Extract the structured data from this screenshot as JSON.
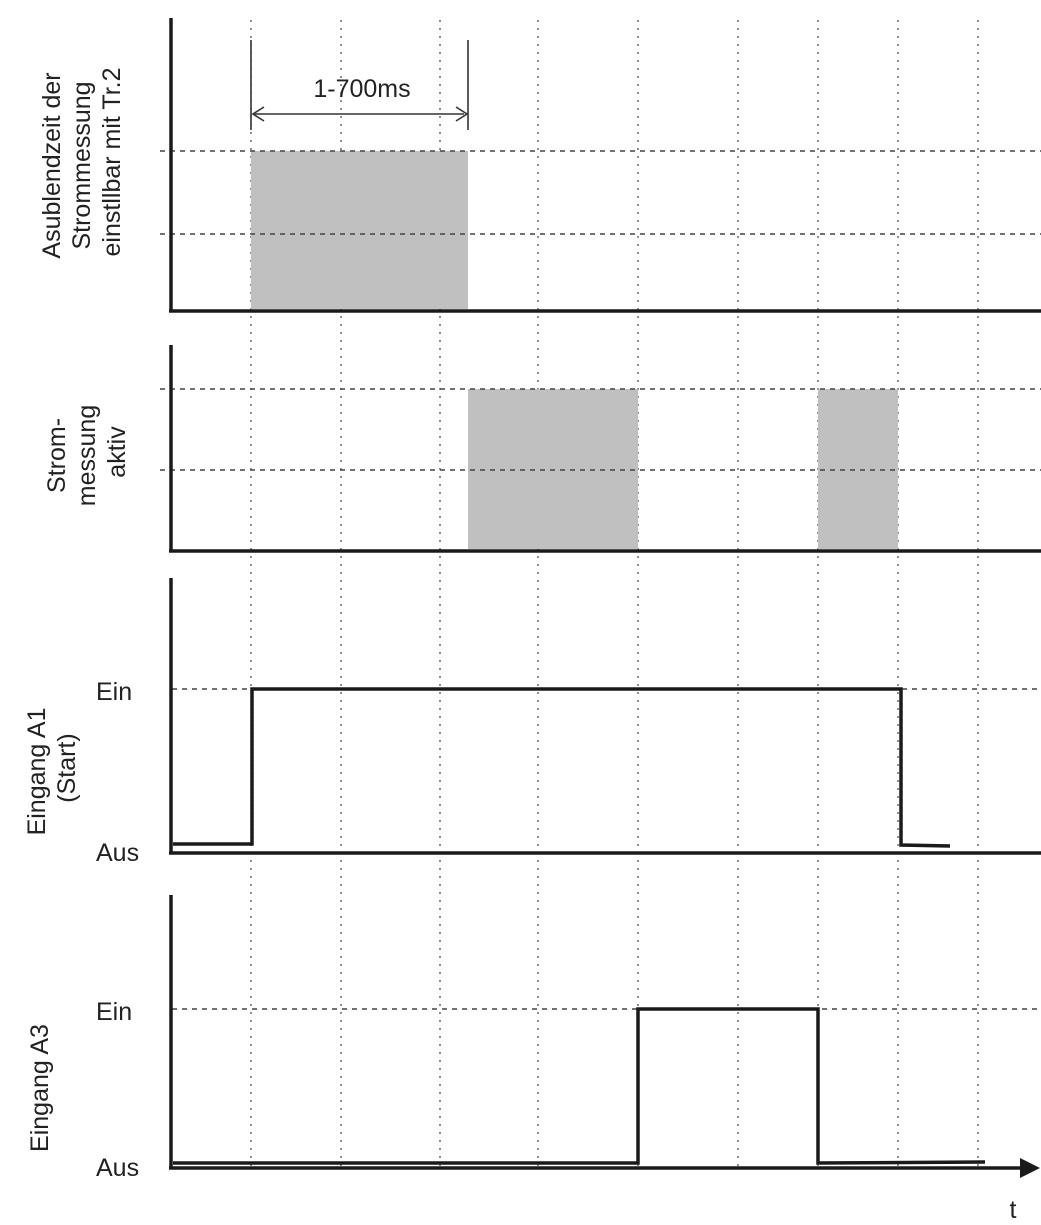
{
  "panels": [
    {
      "id": "ausblendzeit",
      "ylabel": [
        "Asublendzeit der",
        "Strommessung",
        "einstllbar mit Tr.2"
      ]
    },
    {
      "id": "strommessung",
      "ylabel": [
        "Strom-",
        "messung",
        "aktiv"
      ]
    },
    {
      "id": "eingang-a1",
      "ylabel": [
        "Eingang A1",
        "(Start)"
      ],
      "level_high": "Ein",
      "level_low": "Aus"
    },
    {
      "id": "eingang-a3",
      "ylabel": [
        "Eingang A3"
      ],
      "level_high": "Ein",
      "level_low": "Aus"
    }
  ],
  "dimension_label": "1-700ms",
  "x_axis_label": "t"
}
